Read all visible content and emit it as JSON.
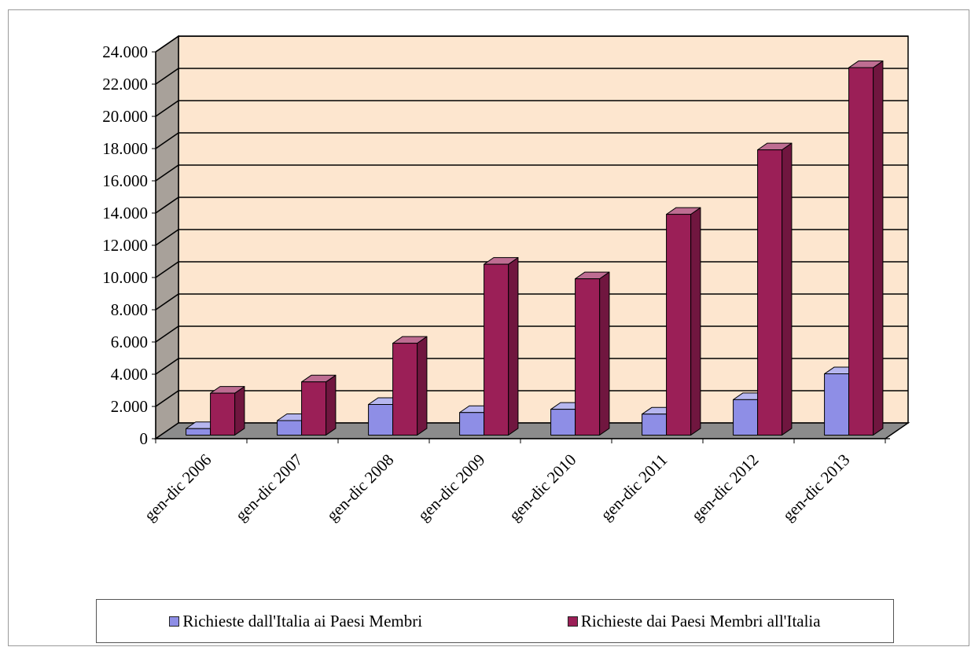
{
  "chart_data": {
    "type": "bar",
    "categories": [
      "gen-dic 2006",
      "gen-dic 2007",
      "gen-dic 2008",
      "gen-dic 2009",
      "gen-dic 2010",
      "gen-dic 2011",
      "gen-dic 2012",
      "gen-dic 2013"
    ],
    "series": [
      {
        "name": "Richieste dall'Italia ai Paesi Membri",
        "color": "#8e8ee6",
        "values": [
          400,
          900,
          1900,
          1400,
          1600,
          1300,
          2200,
          3800
        ]
      },
      {
        "name": "Richieste dai Paesi Membri all'Italia",
        "color": "#9b1f57",
        "values": [
          2600,
          3300,
          5700,
          10600,
          9700,
          13700,
          17700,
          22800
        ]
      }
    ],
    "y_ticks": [
      "0",
      "2.000",
      "4.000",
      "6.000",
      "8.000",
      "10.000",
      "12.000",
      "14.000",
      "16.000",
      "18.000",
      "20.000",
      "22.000",
      "24.000"
    ],
    "ylim": [
      0,
      24000
    ],
    "grid": true,
    "legend_position": "bottom",
    "style": "3d-clustered-column",
    "colors": {
      "wall": "#fde6cf",
      "side_wall": "#a8a19a",
      "floor": "#8c8c8c"
    }
  }
}
